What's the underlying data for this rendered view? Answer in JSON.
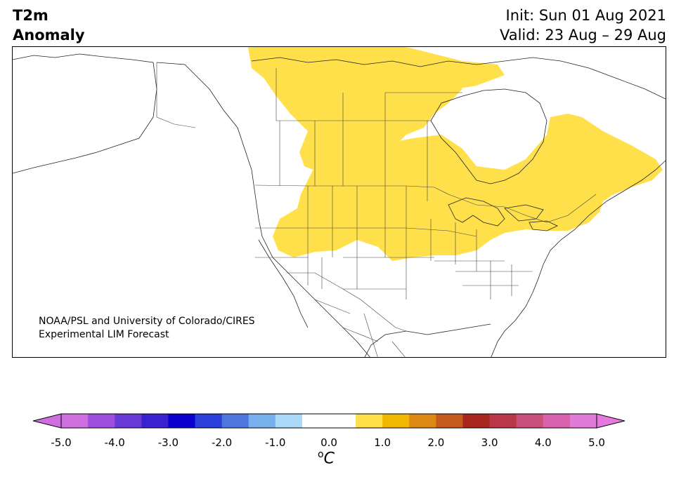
{
  "title": {
    "line1": "T2m",
    "line2": "Anomaly"
  },
  "init": {
    "line1": "Init: Sun 01 Aug 2021",
    "line2": "Valid: 23 Aug – 29 Aug"
  },
  "credit": {
    "line1": "NOAA/PSL and University of Colorado/CIRES",
    "line2": "Experimental LIM Forecast"
  },
  "colorbar": {
    "unit_base": "C",
    "unit_sup": "o",
    "ticks": [
      "-5.0",
      "-4.0",
      "-3.0",
      "-2.0",
      "-1.0",
      "0.0",
      "1.0",
      "2.0",
      "3.0",
      "4.0",
      "5.0"
    ],
    "tick_values": [
      -5,
      -4,
      -3,
      -2,
      -1,
      0,
      1,
      2,
      3,
      4,
      5
    ],
    "range": [
      -5,
      5
    ],
    "colors": [
      "#d070e0",
      "#a050e0",
      "#6a3ad8",
      "#3a22d0",
      "#0a00d0",
      "#2a40d8",
      "#4e78e0",
      "#78b0ee",
      "#aad8f8",
      "#ffffff",
      "#ffffff",
      "#ffe04a",
      "#f2b700",
      "#dc8a14",
      "#c45a1e",
      "#a82620",
      "#b83848",
      "#c8507a",
      "#d862ae",
      "#e07ad8"
    ],
    "extend_low": "#d070e0",
    "extend_high": "#e47ae0"
  },
  "anomaly_colors": {
    "warm_1": "#ffe04a"
  },
  "map": {
    "region": "North America",
    "variable": "2m temperature anomaly"
  }
}
